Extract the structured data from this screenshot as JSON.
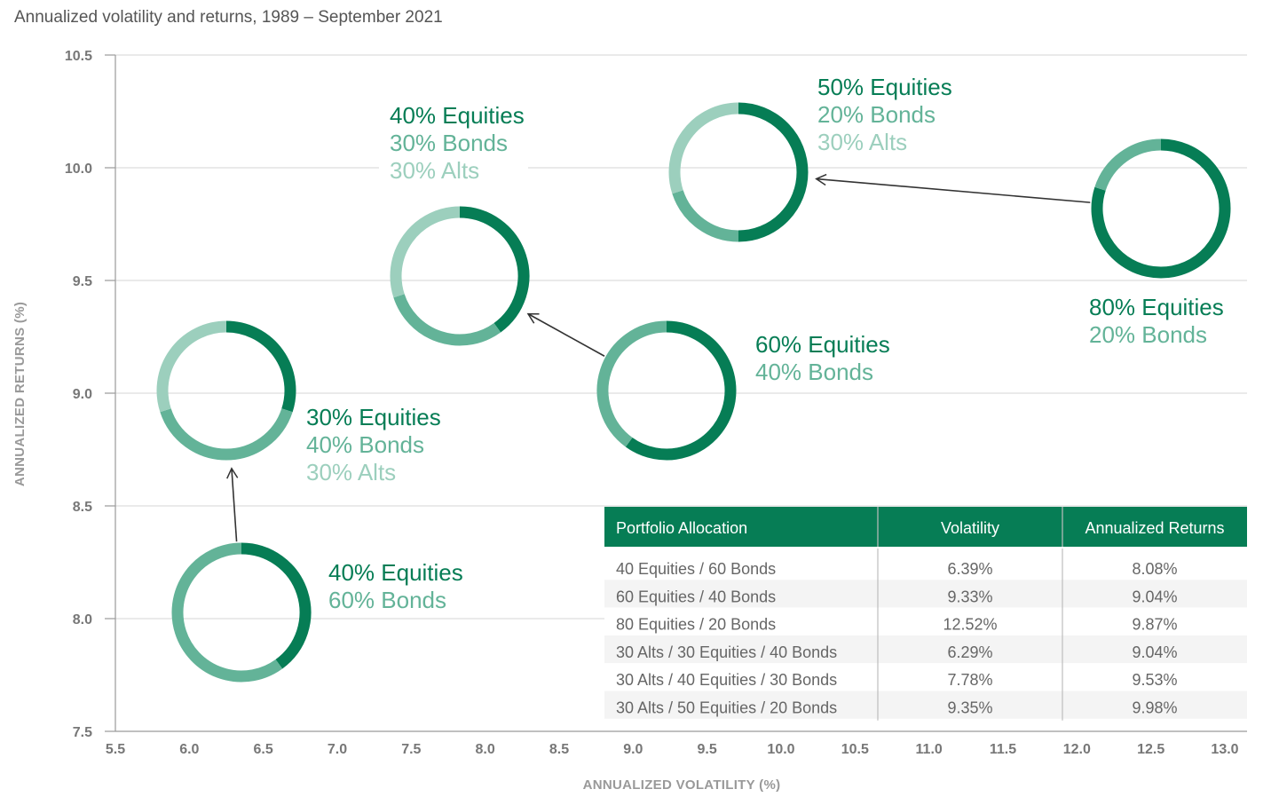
{
  "colors": {
    "equities": "#067d55",
    "bonds": "#63b398",
    "alts": "#9ccfbd",
    "table_header": "#067d55",
    "row_alt": "#f4f4f4"
  },
  "chart_data": {
    "type": "scatter",
    "title": "Annualized volatility and returns, 1989 – September 2021",
    "xlabel": "ANNUALIZED VOLATILITY (%)",
    "ylabel": "ANNUALIZED RETURNS (%)",
    "xlim": [
      5.5,
      13.0
    ],
    "ylim": [
      7.5,
      10.5
    ],
    "x_ticks": [
      "5.5",
      "6.0",
      "6.5",
      "7.0",
      "7.5",
      "8.0",
      "8.5",
      "9.0",
      "9.5",
      "10.0",
      "10.5",
      "11.0",
      "11.5",
      "12.0",
      "12.5",
      "13.0"
    ],
    "y_ticks": [
      "7.5",
      "8.0",
      "8.5",
      "9.0",
      "9.5",
      "10.0",
      "10.5"
    ],
    "points": [
      {
        "id": "p4060",
        "x": 6.39,
        "y": 8.08,
        "allocation": {
          "equities": 40,
          "bonds": 60,
          "alts": 0
        },
        "lines": [
          "40% Equities",
          "60% Bonds"
        ]
      },
      {
        "id": "p6040",
        "x": 9.33,
        "y": 9.04,
        "allocation": {
          "equities": 60,
          "bonds": 40,
          "alts": 0
        },
        "lines": [
          "60% Equities",
          "40% Bonds"
        ]
      },
      {
        "id": "p8020",
        "x": 12.52,
        "y": 9.87,
        "allocation": {
          "equities": 80,
          "bonds": 20,
          "alts": 0
        },
        "lines": [
          "80% Equities",
          "20% Bonds"
        ]
      },
      {
        "id": "p304030",
        "x": 6.29,
        "y": 9.04,
        "allocation": {
          "equities": 30,
          "bonds": 40,
          "alts": 30
        },
        "lines": [
          "30% Equities",
          "40% Bonds",
          "30% Alts"
        ]
      },
      {
        "id": "p403030",
        "x": 7.78,
        "y": 9.53,
        "allocation": {
          "equities": 40,
          "bonds": 30,
          "alts": 30
        },
        "lines": [
          "40% Equities",
          "30% Bonds",
          "30% Alts"
        ]
      },
      {
        "id": "p502030",
        "x": 9.35,
        "y": 9.98,
        "allocation": {
          "equities": 50,
          "bonds": 20,
          "alts": 30
        },
        "lines": [
          "50% Equities",
          "20% Bonds",
          "30% Alts"
        ]
      }
    ],
    "arrows": [
      {
        "from": "p4060",
        "to": "p304030"
      },
      {
        "from": "p6040",
        "to": "p403030"
      },
      {
        "from": "p8020",
        "to": "p502030"
      }
    ],
    "table": {
      "headers": [
        "Portfolio Allocation",
        "Volatility",
        "Annualized Returns"
      ],
      "rows": [
        [
          "40 Equities / 60 Bonds",
          "6.39%",
          "8.08%"
        ],
        [
          "60 Equities / 40 Bonds",
          "9.33%",
          "9.04%"
        ],
        [
          "80 Equities / 20 Bonds",
          "12.52%",
          "9.87%"
        ],
        [
          "30 Alts / 30 Equities / 40 Bonds",
          "6.29%",
          "9.04%"
        ],
        [
          "30 Alts / 40 Equities / 30 Bonds",
          "7.78%",
          "9.53%"
        ],
        [
          "30 Alts / 50 Equities / 20 Bonds",
          "9.35%",
          "9.98%"
        ]
      ]
    }
  }
}
